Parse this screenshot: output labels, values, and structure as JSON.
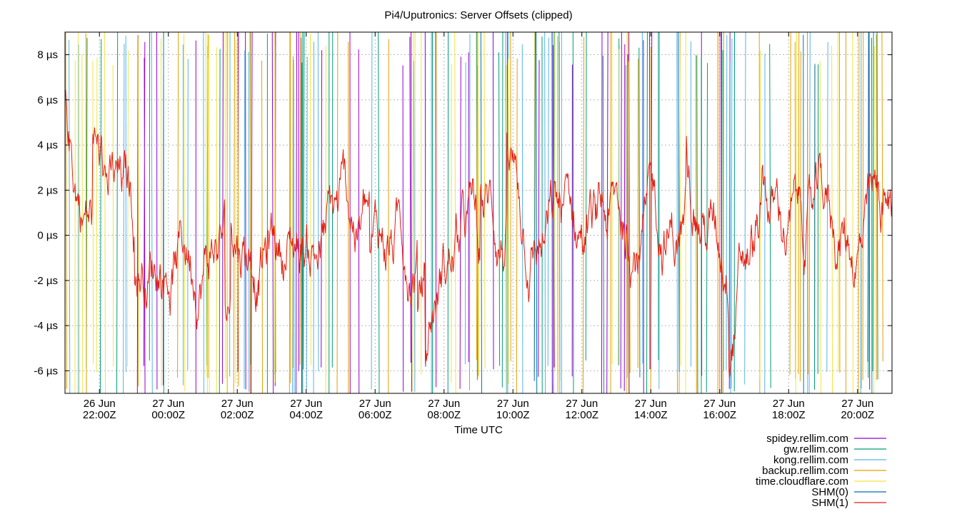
{
  "chart_data": {
    "type": "line",
    "title": "Pi4/Uputronics: Server Offsets (clipped)",
    "xlabel": "Time UTC",
    "ylabel": "",
    "ylim": [
      -7,
      9
    ],
    "grid": true,
    "legend_position": "bottom-right",
    "x_axis": {
      "range": [
        "26 Jun 21:00Z",
        "27 Jun 21:00Z"
      ],
      "ticks": [
        {
          "date": "26 Jun",
          "time": "22:00Z",
          "hour": 22
        },
        {
          "date": "27 Jun",
          "time": "00:00Z",
          "hour": 24
        },
        {
          "date": "27 Jun",
          "time": "02:00Z",
          "hour": 26
        },
        {
          "date": "27 Jun",
          "time": "04:00Z",
          "hour": 28
        },
        {
          "date": "27 Jun",
          "time": "06:00Z",
          "hour": 30
        },
        {
          "date": "27 Jun",
          "time": "08:00Z",
          "hour": 32
        },
        {
          "date": "27 Jun",
          "time": "10:00Z",
          "hour": 34
        },
        {
          "date": "27 Jun",
          "time": "12:00Z",
          "hour": 36
        },
        {
          "date": "27 Jun",
          "time": "14:00Z",
          "hour": 38
        },
        {
          "date": "27 Jun",
          "time": "16:00Z",
          "hour": 40
        },
        {
          "date": "27 Jun",
          "time": "18:00Z",
          "hour": 42
        },
        {
          "date": "27 Jun",
          "time": "20:00Z",
          "hour": 44
        }
      ]
    },
    "y_axis": {
      "ticks": [
        {
          "value": 8,
          "label": "8 µs"
        },
        {
          "value": 6,
          "label": "6 µs"
        },
        {
          "value": 4,
          "label": "4 µs"
        },
        {
          "value": 2,
          "label": "2 µs"
        },
        {
          "value": 0,
          "label": "0 µs"
        },
        {
          "value": -2,
          "label": "-2 µs"
        },
        {
          "value": -4,
          "label": "-4 µs"
        },
        {
          "value": -6,
          "label": "-6 µs"
        }
      ]
    },
    "series": [
      {
        "name": "spidey.rellim.com",
        "color": "#9400d3"
      },
      {
        "name": "gw.rellim.com",
        "color": "#009e73"
      },
      {
        "name": "kong.rellim.com",
        "color": "#56b4e9"
      },
      {
        "name": "backup.rellim.com",
        "color": "#e69f00"
      },
      {
        "name": "time.cloudflare.com",
        "color": "#f0e442"
      },
      {
        "name": "SHM(0)",
        "color": "#0072b2"
      },
      {
        "name": "SHM(1)",
        "color": "#e51e10"
      }
    ],
    "main_series_hint": "SHM(1) oscillates roughly between -5 µs and +6 µs around 0 µs; other servers show frequent clipped spikes spanning the full range"
  }
}
